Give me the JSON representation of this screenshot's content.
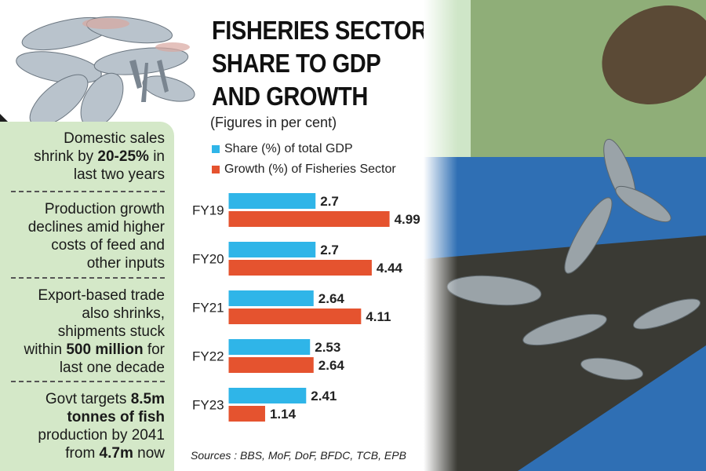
{
  "title_lines": [
    "FISHERIES SECTOR",
    "SHARE TO GDP",
    "AND GROWTH"
  ],
  "subtitle": "(Figures in per cent)",
  "legend": [
    {
      "label": "Share (%) of total GDP",
      "color": "#2fb5e8"
    },
    {
      "label": "Growth (%) of Fisheries Sector",
      "color": "#e5532f"
    }
  ],
  "notes": [
    {
      "lines": [
        [
          "Domestic sales",
          ""
        ],
        [
          "shrink by ",
          "20-25%",
          " in"
        ],
        [
          "last two years",
          ""
        ]
      ]
    },
    {
      "lines": [
        [
          "Production growth"
        ],
        [
          "declines amid higher"
        ],
        [
          "costs of feed and"
        ],
        [
          "other inputs"
        ]
      ]
    },
    {
      "lines": [
        [
          "Export-based trade"
        ],
        [
          "also shrinks,"
        ],
        [
          "shipments stuck"
        ],
        [
          "within ",
          "500 million",
          " for"
        ],
        [
          "last one decade"
        ]
      ]
    },
    {
      "lines": [
        [
          "Govt targets ",
          "8.5m"
        ],
        [
          "tonnes",
          " of fish"
        ],
        [
          "production by 2041"
        ],
        [
          "from ",
          "4.7m",
          "  now"
        ]
      ]
    }
  ],
  "sources": "Sources : BBS, MoF, DoF, BFDC, TCB, EPB",
  "chart_data": {
    "type": "bar",
    "orientation": "horizontal",
    "categories": [
      "FY19",
      "FY20",
      "FY21",
      "FY22",
      "FY23"
    ],
    "series": [
      {
        "name": "Share (%) of total GDP",
        "values": [
          2.7,
          2.7,
          2.64,
          2.53,
          2.41
        ],
        "labels": [
          "2.7",
          "2.7",
          "2.64",
          "2.53",
          "2.41"
        ],
        "color": "#2fb5e8"
      },
      {
        "name": "Growth (%) of Fisheries Sector",
        "values": [
          4.99,
          4.44,
          4.11,
          2.64,
          1.14
        ],
        "labels": [
          "4.99",
          "4.44",
          "4.11",
          "2.64",
          "1.14"
        ],
        "color": "#e5532f"
      }
    ],
    "legend_position": "top",
    "grid": false
  }
}
